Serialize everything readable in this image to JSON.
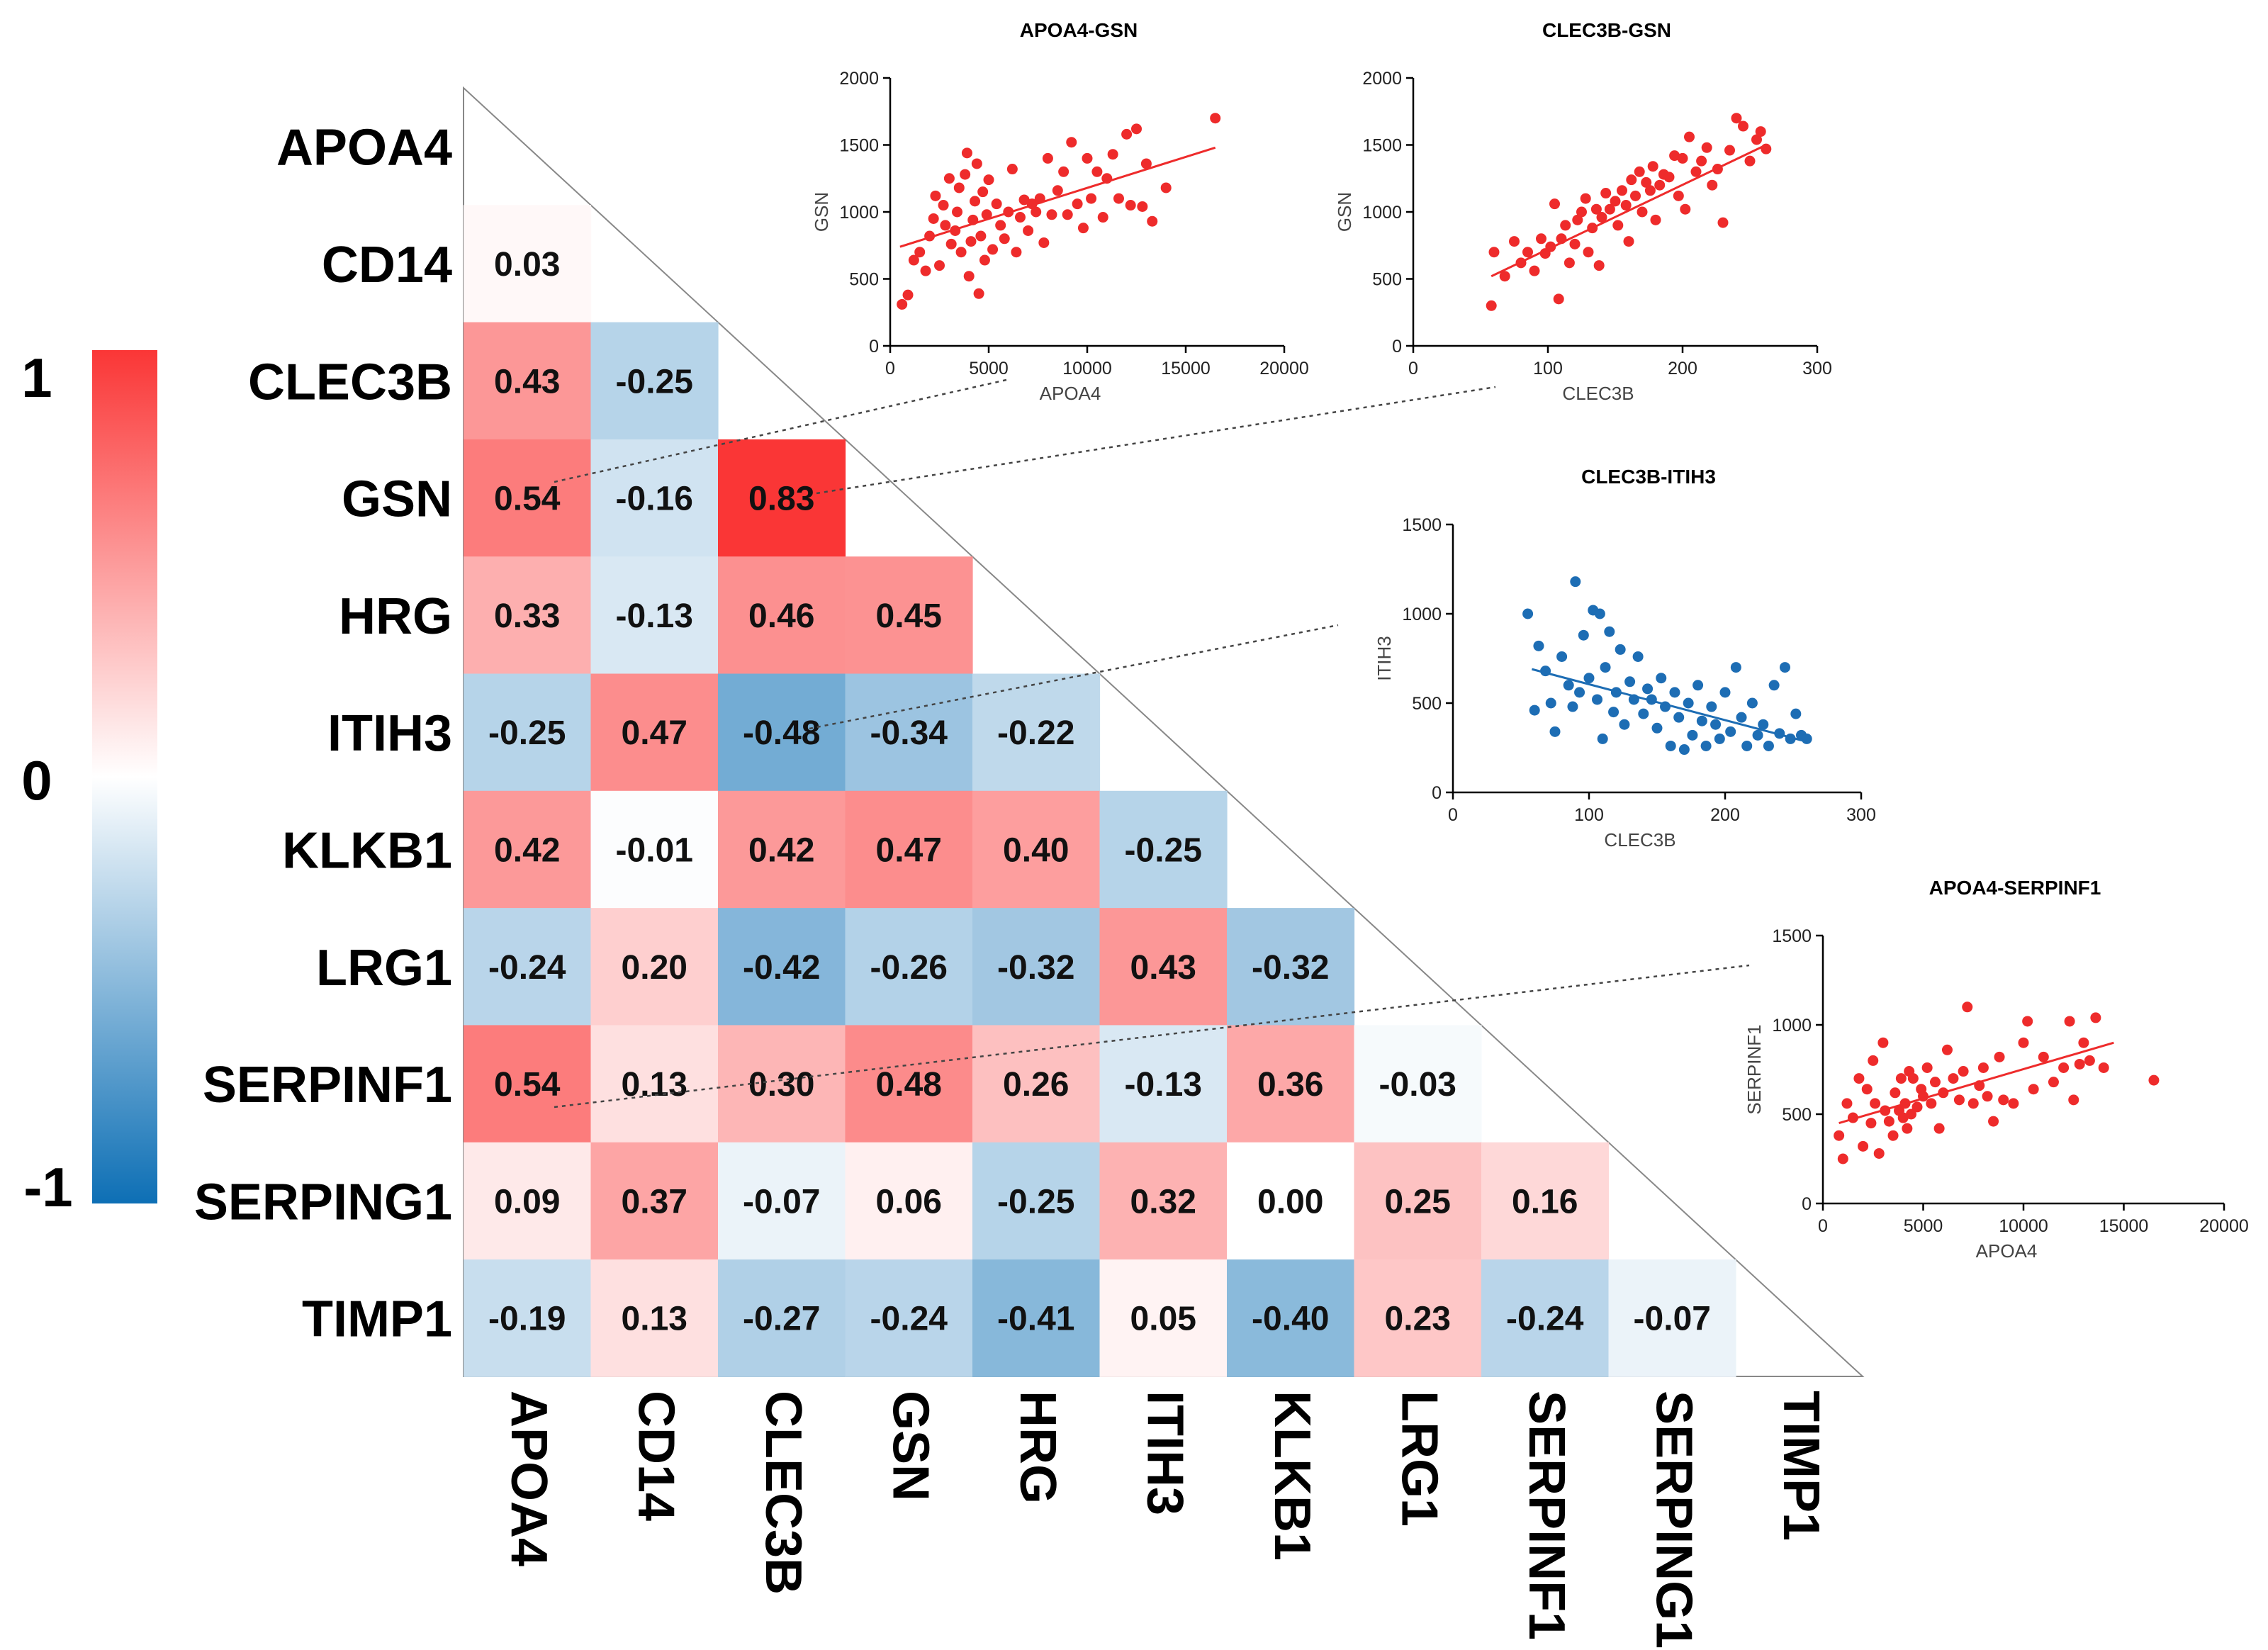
{
  "chart_data": [
    {
      "type": "heatmap",
      "title": "",
      "variables": [
        "APOA4",
        "CD14",
        "CLEC3B",
        "GSN",
        "HRG",
        "ITIH3",
        "KLKB1",
        "LRG1",
        "SERPINF1",
        "SERPING1",
        "TIMP1"
      ],
      "lower_triangle_values": [
        [],
        [
          "0.03"
        ],
        [
          "0.43",
          "-0.25"
        ],
        [
          "0.54",
          "-0.16",
          "0.83"
        ],
        [
          "0.33",
          "-0.13",
          "0.46",
          "0.45"
        ],
        [
          "-0.25",
          "0.47",
          "-0.48",
          "-0.34",
          "-0.22"
        ],
        [
          "0.42",
          "-0.01",
          "0.42",
          "0.47",
          "0.40",
          "-0.25"
        ],
        [
          "-0.24",
          "0.20",
          "-0.42",
          "-0.26",
          "-0.32",
          "0.43",
          "-0.32"
        ],
        [
          "0.54",
          "0.13",
          "0.30",
          "0.48",
          "0.26",
          "-0.13",
          "0.36",
          "-0.03"
        ],
        [
          "0.09",
          "0.37",
          "-0.07",
          "0.06",
          "-0.25",
          "0.32",
          "0.00",
          "0.25",
          "0.16"
        ],
        [
          "-0.19",
          "0.13",
          "-0.27",
          "-0.24",
          "-0.41",
          "0.05",
          "-0.40",
          "0.23",
          "-0.24",
          "-0.07"
        ]
      ],
      "colorbar": {
        "min": -1,
        "max": 1,
        "tick_labels": [
          "1",
          "0",
          "-1"
        ]
      },
      "colors": {
        "positive": "#fa3636",
        "neutral": "#ffffff",
        "negative": "#0d6fb5"
      }
    },
    {
      "type": "scatter",
      "title": "APOA4-GSN",
      "xlabel": "APOA4",
      "ylabel": "GSN",
      "xlim": [
        0,
        20000
      ],
      "ylim": [
        0,
        2000
      ],
      "xticks": [
        "0",
        "5000",
        "10000",
        "15000",
        "20000"
      ],
      "yticks": [
        "0",
        "500",
        "1000",
        "1500",
        "2000"
      ],
      "color": "#ee2b2b",
      "fit_line": [
        [
          500,
          740
        ],
        [
          16500,
          1480
        ]
      ],
      "points": [
        [
          600,
          310
        ],
        [
          900,
          380
        ],
        [
          1200,
          640
        ],
        [
          1500,
          700
        ],
        [
          1800,
          560
        ],
        [
          2000,
          820
        ],
        [
          2200,
          950
        ],
        [
          2300,
          1120
        ],
        [
          2500,
          600
        ],
        [
          2700,
          1050
        ],
        [
          2800,
          900
        ],
        [
          3000,
          1250
        ],
        [
          3100,
          760
        ],
        [
          3300,
          860
        ],
        [
          3400,
          1000
        ],
        [
          3500,
          1180
        ],
        [
          3600,
          700
        ],
        [
          3800,
          1280
        ],
        [
          3900,
          1440
        ],
        [
          4000,
          520
        ],
        [
          4100,
          780
        ],
        [
          4200,
          940
        ],
        [
          4300,
          1080
        ],
        [
          4400,
          1360
        ],
        [
          4500,
          390
        ],
        [
          4600,
          820
        ],
        [
          4700,
          1150
        ],
        [
          4800,
          640
        ],
        [
          4900,
          980
        ],
        [
          5000,
          1240
        ],
        [
          5200,
          720
        ],
        [
          5400,
          1060
        ],
        [
          5600,
          900
        ],
        [
          5800,
          800
        ],
        [
          6000,
          1000
        ],
        [
          6200,
          1320
        ],
        [
          6400,
          700
        ],
        [
          6600,
          960
        ],
        [
          6800,
          1090
        ],
        [
          7000,
          860
        ],
        [
          7200,
          1060
        ],
        [
          7400,
          1000
        ],
        [
          7600,
          1100
        ],
        [
          7800,
          770
        ],
        [
          8000,
          1400
        ],
        [
          8200,
          980
        ],
        [
          8500,
          1160
        ],
        [
          8800,
          1300
        ],
        [
          9000,
          980
        ],
        [
          9200,
          1520
        ],
        [
          9500,
          1060
        ],
        [
          9800,
          880
        ],
        [
          10000,
          1400
        ],
        [
          10200,
          1100
        ],
        [
          10500,
          1300
        ],
        [
          10800,
          960
        ],
        [
          11000,
          1250
        ],
        [
          11300,
          1430
        ],
        [
          11600,
          1100
        ],
        [
          12000,
          1580
        ],
        [
          12200,
          1050
        ],
        [
          12500,
          1620
        ],
        [
          12800,
          1040
        ],
        [
          13000,
          1360
        ],
        [
          13300,
          930
        ],
        [
          14000,
          1180
        ],
        [
          16500,
          1700
        ]
      ]
    },
    {
      "type": "scatter",
      "title": "CLEC3B-GSN",
      "xlabel": "CLEC3B",
      "ylabel": "GSN",
      "xlim": [
        0,
        300
      ],
      "ylim": [
        0,
        2000
      ],
      "xticks": [
        "0",
        "100",
        "200",
        "300"
      ],
      "yticks": [
        "0",
        "500",
        "1000",
        "1500",
        "2000"
      ],
      "color": "#ee2b2b",
      "fit_line": [
        [
          58,
          520
        ],
        [
          262,
          1500
        ]
      ],
      "points": [
        [
          58,
          300
        ],
        [
          60,
          700
        ],
        [
          68,
          520
        ],
        [
          75,
          780
        ],
        [
          80,
          620
        ],
        [
          85,
          700
        ],
        [
          90,
          560
        ],
        [
          95,
          800
        ],
        [
          98,
          690
        ],
        [
          102,
          740
        ],
        [
          105,
          1060
        ],
        [
          108,
          350
        ],
        [
          110,
          800
        ],
        [
          113,
          900
        ],
        [
          116,
          620
        ],
        [
          120,
          760
        ],
        [
          122,
          940
        ],
        [
          125,
          1000
        ],
        [
          128,
          1100
        ],
        [
          130,
          700
        ],
        [
          133,
          880
        ],
        [
          136,
          1020
        ],
        [
          138,
          600
        ],
        [
          140,
          960
        ],
        [
          143,
          1140
        ],
        [
          146,
          1020
        ],
        [
          150,
          1080
        ],
        [
          152,
          900
        ],
        [
          155,
          1160
        ],
        [
          158,
          1050
        ],
        [
          160,
          780
        ],
        [
          162,
          1240
        ],
        [
          165,
          1120
        ],
        [
          168,
          1300
        ],
        [
          170,
          1000
        ],
        [
          173,
          1220
        ],
        [
          176,
          1160
        ],
        [
          178,
          1340
        ],
        [
          180,
          940
        ],
        [
          183,
          1200
        ],
        [
          186,
          1280
        ],
        [
          190,
          1260
        ],
        [
          194,
          1420
        ],
        [
          197,
          1120
        ],
        [
          200,
          1400
        ],
        [
          202,
          1020
        ],
        [
          205,
          1560
        ],
        [
          210,
          1300
        ],
        [
          214,
          1380
        ],
        [
          218,
          1480
        ],
        [
          222,
          1200
        ],
        [
          226,
          1320
        ],
        [
          230,
          920
        ],
        [
          235,
          1460
        ],
        [
          240,
          1700
        ],
        [
          245,
          1640
        ],
        [
          250,
          1380
        ],
        [
          255,
          1540
        ],
        [
          258,
          1600
        ],
        [
          262,
          1470
        ]
      ]
    },
    {
      "type": "scatter",
      "title": "CLEC3B-ITIH3",
      "xlabel": "CLEC3B",
      "ylabel": "ITIH3",
      "xlim": [
        0,
        300
      ],
      "ylim": [
        0,
        1500
      ],
      "xticks": [
        "0",
        "100",
        "200",
        "300"
      ],
      "yticks": [
        "0",
        "500",
        "1000",
        "1500"
      ],
      "color": "#1d6db4",
      "fit_line": [
        [
          58,
          690
        ],
        [
          262,
          280
        ]
      ],
      "points": [
        [
          55,
          1000
        ],
        [
          60,
          460
        ],
        [
          63,
          820
        ],
        [
          68,
          680
        ],
        [
          72,
          500
        ],
        [
          75,
          340
        ],
        [
          80,
          760
        ],
        [
          85,
          600
        ],
        [
          88,
          480
        ],
        [
          90,
          1180
        ],
        [
          93,
          560
        ],
        [
          96,
          880
        ],
        [
          100,
          640
        ],
        [
          103,
          1020
        ],
        [
          106,
          520
        ],
        [
          108,
          1000
        ],
        [
          110,
          300
        ],
        [
          112,
          700
        ],
        [
          115,
          900
        ],
        [
          118,
          450
        ],
        [
          120,
          560
        ],
        [
          123,
          800
        ],
        [
          126,
          380
        ],
        [
          130,
          620
        ],
        [
          133,
          520
        ],
        [
          136,
          760
        ],
        [
          140,
          440
        ],
        [
          143,
          580
        ],
        [
          146,
          520
        ],
        [
          150,
          360
        ],
        [
          153,
          640
        ],
        [
          156,
          480
        ],
        [
          160,
          260
        ],
        [
          163,
          560
        ],
        [
          166,
          420
        ],
        [
          170,
          240
        ],
        [
          173,
          500
        ],
        [
          176,
          320
        ],
        [
          180,
          600
        ],
        [
          183,
          400
        ],
        [
          186,
          260
        ],
        [
          190,
          480
        ],
        [
          193,
          380
        ],
        [
          196,
          300
        ],
        [
          200,
          560
        ],
        [
          204,
          340
        ],
        [
          208,
          700
        ],
        [
          212,
          420
        ],
        [
          216,
          260
        ],
        [
          220,
          500
        ],
        [
          224,
          320
        ],
        [
          228,
          380
        ],
        [
          232,
          260
        ],
        [
          236,
          600
        ],
        [
          240,
          330
        ],
        [
          244,
          700
        ],
        [
          248,
          300
        ],
        [
          252,
          440
        ],
        [
          256,
          320
        ],
        [
          260,
          300
        ]
      ]
    },
    {
      "type": "scatter",
      "title": "APOA4-SERPINF1",
      "xlabel": "APOA4",
      "ylabel": "SERPINF1",
      "xlim": [
        0,
        20000
      ],
      "ylim": [
        0,
        1500
      ],
      "xticks": [
        "0",
        "5000",
        "10000",
        "15000",
        "20000"
      ],
      "yticks": [
        "0",
        "500",
        "1000",
        "1500"
      ],
      "color": "#ee2b2b",
      "fit_line": [
        [
          800,
          450
        ],
        [
          14500,
          900
        ]
      ],
      "points": [
        [
          800,
          380
        ],
        [
          1000,
          250
        ],
        [
          1200,
          560
        ],
        [
          1500,
          480
        ],
        [
          1800,
          700
        ],
        [
          2000,
          320
        ],
        [
          2200,
          640
        ],
        [
          2400,
          450
        ],
        [
          2500,
          800
        ],
        [
          2600,
          560
        ],
        [
          2800,
          280
        ],
        [
          3000,
          900
        ],
        [
          3100,
          520
        ],
        [
          3300,
          460
        ],
        [
          3500,
          380
        ],
        [
          3600,
          620
        ],
        [
          3800,
          520
        ],
        [
          3900,
          700
        ],
        [
          4000,
          480
        ],
        [
          4100,
          560
        ],
        [
          4200,
          420
        ],
        [
          4300,
          740
        ],
        [
          4400,
          500
        ],
        [
          4500,
          700
        ],
        [
          4700,
          540
        ],
        [
          4900,
          640
        ],
        [
          5000,
          600
        ],
        [
          5200,
          760
        ],
        [
          5400,
          560
        ],
        [
          5600,
          680
        ],
        [
          5800,
          420
        ],
        [
          6000,
          620
        ],
        [
          6200,
          860
        ],
        [
          6500,
          700
        ],
        [
          6800,
          580
        ],
        [
          7000,
          740
        ],
        [
          7200,
          1100
        ],
        [
          7500,
          560
        ],
        [
          7800,
          660
        ],
        [
          8000,
          760
        ],
        [
          8200,
          600
        ],
        [
          8500,
          460
        ],
        [
          8800,
          820
        ],
        [
          9000,
          580
        ],
        [
          9500,
          560
        ],
        [
          10000,
          900
        ],
        [
          10200,
          1020
        ],
        [
          10500,
          640
        ],
        [
          11000,
          820
        ],
        [
          11500,
          680
        ],
        [
          12000,
          760
        ],
        [
          12300,
          1020
        ],
        [
          12500,
          580
        ],
        [
          12800,
          780
        ],
        [
          13000,
          900
        ],
        [
          13300,
          800
        ],
        [
          13600,
          1040
        ],
        [
          14000,
          760
        ],
        [
          16500,
          690
        ]
      ]
    }
  ]
}
